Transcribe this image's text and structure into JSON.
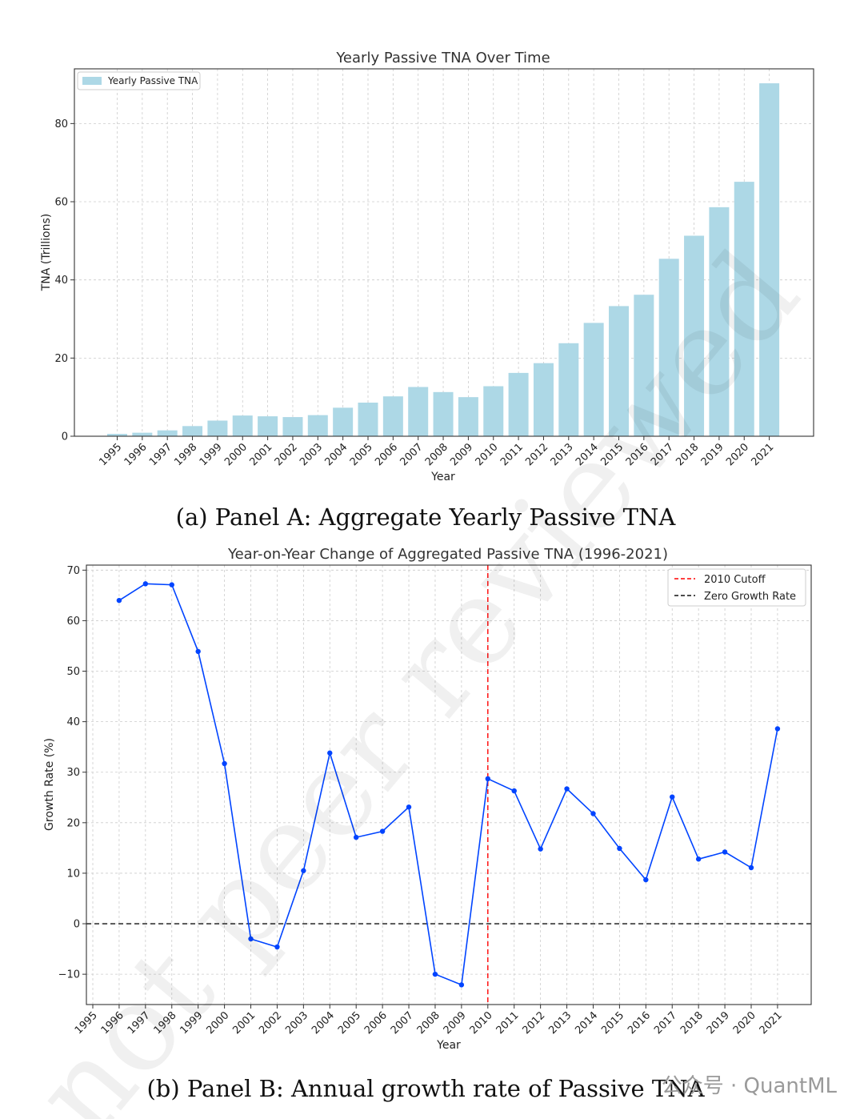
{
  "chart_data": [
    {
      "type": "bar",
      "title": "Yearly Passive TNA Over Time",
      "xlabel": "Year",
      "ylabel": "TNA (Trillions)",
      "legend": [
        "Yearly Passive TNA"
      ],
      "legend_position": "top-left",
      "grid": true,
      "ylim": [
        0,
        94
      ],
      "yticks": [
        0,
        20,
        40,
        60,
        80
      ],
      "categories": [
        "1995",
        "1996",
        "1997",
        "1998",
        "1999",
        "2000",
        "2001",
        "2002",
        "2003",
        "2004",
        "2005",
        "2006",
        "2007",
        "2008",
        "2009",
        "2010",
        "2011",
        "2012",
        "2013",
        "2014",
        "2015",
        "2016",
        "2017",
        "2018",
        "2019",
        "2020",
        "2021"
      ],
      "values": [
        0.6,
        0.9,
        1.5,
        2.6,
        4.0,
        5.3,
        5.1,
        4.9,
        5.4,
        7.3,
        8.6,
        10.2,
        12.6,
        11.3,
        10.0,
        12.8,
        16.2,
        18.7,
        23.8,
        29.0,
        33.3,
        36.2,
        45.4,
        51.3,
        58.6,
        65.1,
        90.3
      ],
      "bar_color": "#ADD8E6",
      "caption": "(a) Panel A: Aggregate Yearly Passive TNA"
    },
    {
      "type": "line",
      "title": "Year-on-Year Change of Aggregated Passive TNA (1996-2021)",
      "xlabel": "Year",
      "ylabel": "Growth Rate (%)",
      "grid": true,
      "ylim": [
        -16,
        71
      ],
      "yticks": [
        -10,
        0,
        10,
        20,
        30,
        40,
        50,
        60,
        70
      ],
      "ytick_labels": [
        "−10",
        "0",
        "10",
        "20",
        "30",
        "40",
        "50",
        "60",
        "70"
      ],
      "x_tick_labels": [
        "1995",
        "1996",
        "1997",
        "1998",
        "1999",
        "2000",
        "2001",
        "2002",
        "2003",
        "2004",
        "2005",
        "2006",
        "2007",
        "2008",
        "2009",
        "2010",
        "2011",
        "2012",
        "2013",
        "2014",
        "2015",
        "2016",
        "2017",
        "2018",
        "2019",
        "2020",
        "2021"
      ],
      "x": [
        1996,
        1997,
        1998,
        1999,
        2000,
        2001,
        2002,
        2003,
        2004,
        2005,
        2006,
        2007,
        2008,
        2009,
        2010,
        2011,
        2012,
        2013,
        2014,
        2015,
        2016,
        2017,
        2018,
        2019,
        2020,
        2021
      ],
      "series": [
        {
          "name": "Growth Rate",
          "color": "#0044FF",
          "values": [
            64.0,
            67.3,
            67.1,
            53.9,
            31.7,
            -3.0,
            -4.6,
            10.5,
            33.8,
            17.1,
            18.3,
            23.1,
            -10.0,
            -12.1,
            28.7,
            26.3,
            14.8,
            26.7,
            21.8,
            14.9,
            8.7,
            25.1,
            12.8,
            14.2,
            11.1,
            38.6
          ]
        }
      ],
      "reference_lines": [
        {
          "name": "2010 Cutoff",
          "axis": "x",
          "value": 2010,
          "color": "#FF0000"
        },
        {
          "name": "Zero Growth Rate",
          "axis": "y",
          "value": 0,
          "color": "#111111"
        }
      ],
      "legend": [
        "2010 Cutoff",
        "Zero Growth Rate"
      ],
      "legend_position": "top-right",
      "caption": "(b) Panel B: Annual growth rate of Passive TNA"
    }
  ],
  "watermark": {
    "diagonal_text": "not peer reviewed",
    "source_tag": "公众号 · QuantML"
  }
}
